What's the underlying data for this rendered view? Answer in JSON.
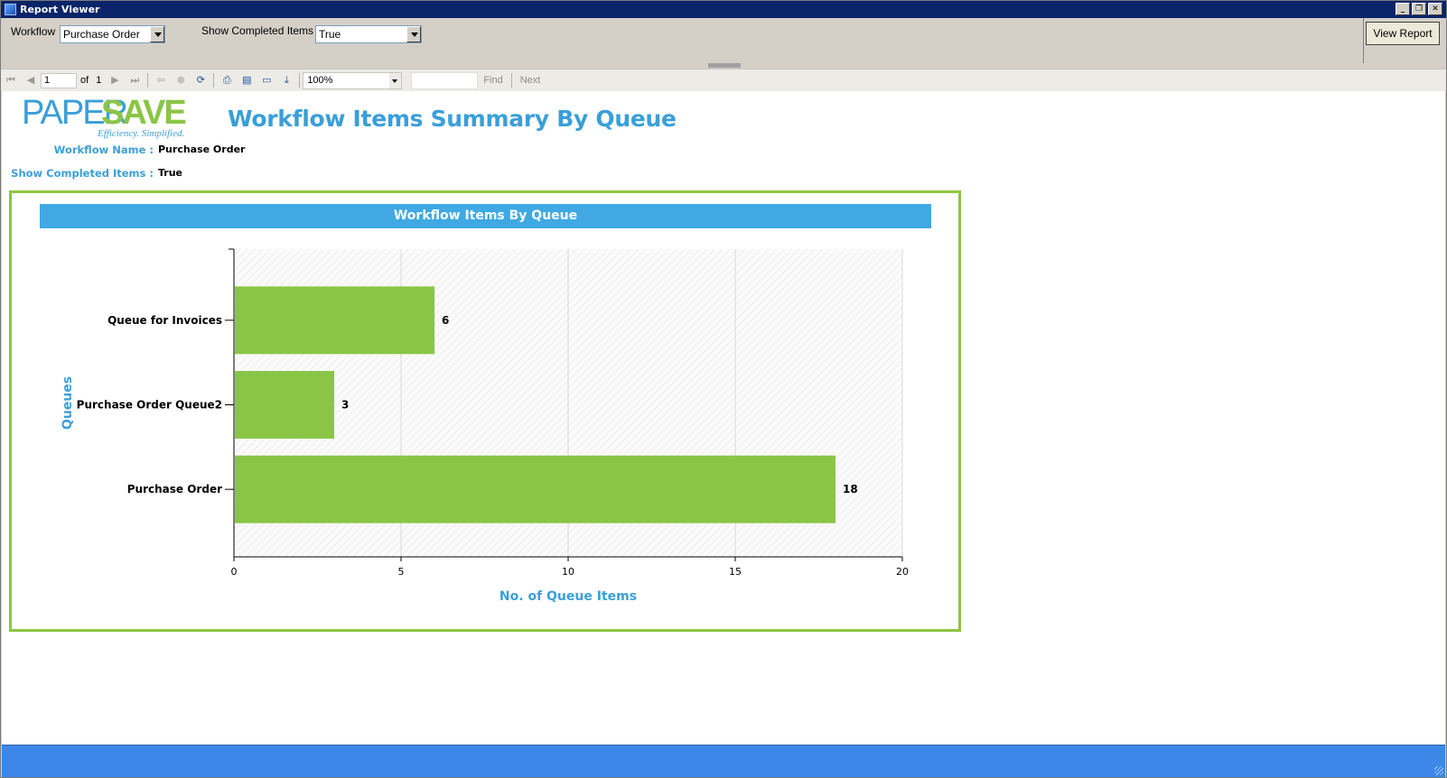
{
  "window": {
    "title": "Report Viewer"
  },
  "params": {
    "workflow_label": "Workflow",
    "workflow_value": "Purchase Order",
    "show_completed_label": "Show Completed Items",
    "show_completed_value": "True",
    "view_report_label": "View Report"
  },
  "toolbar": {
    "page_current": "1",
    "page_of": "of",
    "page_total": "1",
    "zoom": "100%",
    "find_label": "Find",
    "next_label": "Next"
  },
  "report": {
    "logo_text_paper": "PAPER",
    "logo_text_save": "SAVE",
    "logo_tagline": "Efficiency. Simplified.",
    "title": "Workflow Items Summary By Queue",
    "workflow_name_label": "Workflow Name :",
    "workflow_name_value": "Purchase Order",
    "show_completed_label": "Show Completed Items :",
    "show_completed_value": "True"
  },
  "chart_data": {
    "type": "bar",
    "orientation": "horizontal",
    "title": "Workflow Items By Queue",
    "xlabel": "No. of Queue Items",
    "ylabel": "Queues",
    "categories": [
      "Queue for Invoices",
      "Purchase Order Queue2",
      "Purchase Order"
    ],
    "values": [
      6,
      3,
      18
    ],
    "xlim": [
      0,
      20
    ],
    "xticks": [
      0,
      5,
      10,
      15,
      20
    ],
    "grid": true,
    "bar_color": "#8bc547",
    "accent_color": "#3b9fd8"
  }
}
